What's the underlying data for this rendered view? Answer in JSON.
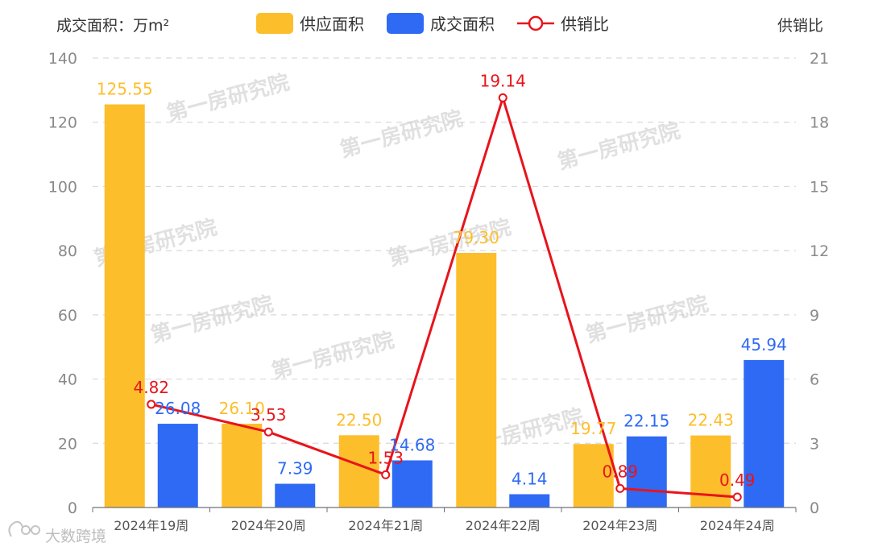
{
  "chart_data": {
    "type": "bar",
    "left_axis_title": "成交面积：万m²",
    "right_axis_title": "供销比",
    "categories": [
      "2024年19周",
      "2024年20周",
      "2024年21周",
      "2024年22周",
      "2024年23周",
      "2024年24周"
    ],
    "series": [
      {
        "name": "供应面积",
        "type": "bar",
        "axis": "left",
        "color": "#FDBE2B",
        "values": [
          125.55,
          26.1,
          22.5,
          79.3,
          19.77,
          22.43
        ],
        "labels": [
          "125.55",
          "26.10",
          "22.50",
          "79.30",
          "19.77",
          "22.43"
        ]
      },
      {
        "name": "成交面积",
        "type": "bar",
        "axis": "left",
        "color": "#2F6AF5",
        "values": [
          26.08,
          7.39,
          14.68,
          4.14,
          22.15,
          45.94
        ],
        "labels": [
          "26.08",
          "7.39",
          "14.68",
          "4.14",
          "22.15",
          "45.94"
        ]
      },
      {
        "name": "供销比",
        "type": "line",
        "axis": "right",
        "color": "#E8141B",
        "values": [
          4.82,
          3.53,
          1.53,
          19.14,
          0.89,
          0.49
        ],
        "labels": [
          "4.82",
          "3.53",
          "1.53",
          "19.14",
          "0.89",
          "0.49"
        ]
      }
    ],
    "left_axis": {
      "min": 0,
      "max": 140,
      "ticks": [
        0,
        20,
        40,
        60,
        80,
        100,
        120,
        140
      ]
    },
    "right_axis": {
      "min": 0,
      "max": 21,
      "ticks": [
        0,
        3,
        6,
        9,
        12,
        15,
        18,
        21
      ]
    },
    "grid": true,
    "legend_position": "top-center"
  },
  "watermark_text": "第一房研究院",
  "corner_logo_text": "大数跨境"
}
